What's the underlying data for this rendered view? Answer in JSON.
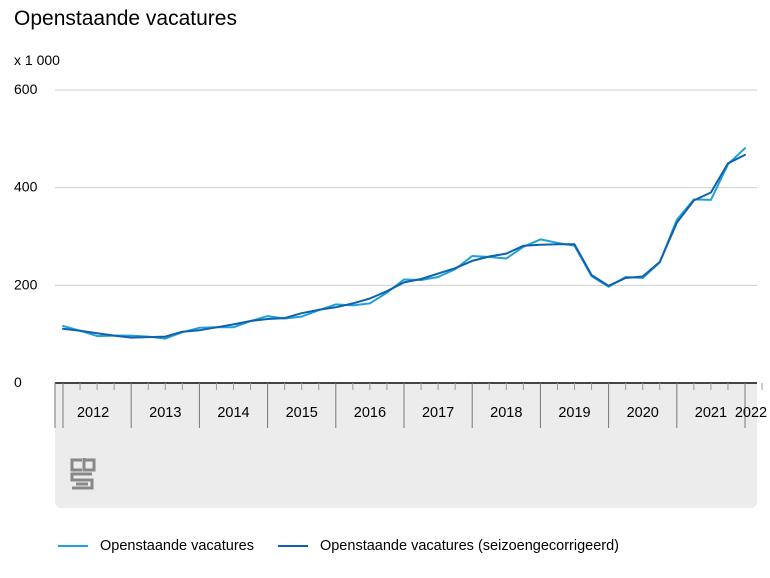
{
  "title": "Openstaande vacatures",
  "unit_label": "x 1 000",
  "chart_data": {
    "type": "line",
    "title": "Openstaande vacatures",
    "ylabel": "x 1 000",
    "ylim": [
      0,
      600
    ],
    "yticks": [
      0,
      200,
      400,
      600
    ],
    "grid": true,
    "legend_position": "bottom",
    "x_periods": [
      "2012-Q1",
      "2012-Q2",
      "2012-Q3",
      "2012-Q4",
      "2013-Q1",
      "2013-Q2",
      "2013-Q3",
      "2013-Q4",
      "2014-Q1",
      "2014-Q2",
      "2014-Q3",
      "2014-Q4",
      "2015-Q1",
      "2015-Q2",
      "2015-Q3",
      "2015-Q4",
      "2016-Q1",
      "2016-Q2",
      "2016-Q3",
      "2016-Q4",
      "2017-Q1",
      "2017-Q2",
      "2017-Q3",
      "2017-Q4",
      "2018-Q1",
      "2018-Q2",
      "2018-Q3",
      "2018-Q4",
      "2019-Q1",
      "2019-Q2",
      "2019-Q3",
      "2019-Q4",
      "2020-Q1",
      "2020-Q2",
      "2020-Q3",
      "2020-Q4",
      "2021-Q1",
      "2021-Q2",
      "2021-Q3",
      "2021-Q4",
      "2022-Q1",
      "2022-Q2"
    ],
    "year_labels": [
      "2012",
      "2013",
      "2014",
      "2015",
      "2016",
      "2017",
      "2018",
      "2019",
      "2020",
      "2021",
      "2022"
    ],
    "series": [
      {
        "name": "Openstaande vacatures",
        "color": "#1fa3d6",
        "values": [
          117,
          107,
          96,
          97,
          97,
          95,
          91,
          104,
          113,
          114,
          114,
          127,
          137,
          132,
          136,
          149,
          161,
          159,
          163,
          185,
          212,
          211,
          217,
          233,
          260,
          258,
          255,
          279,
          294,
          287,
          281,
          219,
          197,
          217,
          215,
          247,
          334,
          376,
          375,
          448,
          481,
          null
        ]
      },
      {
        "name": "Openstaande vacatures (seizoengecorrigeerd)",
        "color": "#1060b0",
        "values": [
          111,
          107,
          102,
          97,
          93,
          94,
          95,
          105,
          108,
          114,
          120,
          127,
          131,
          133,
          143,
          150,
          155,
          163,
          173,
          188,
          206,
          213,
          224,
          235,
          250,
          259,
          265,
          281,
          283,
          284,
          284,
          221,
          199,
          215,
          218,
          248,
          328,
          374,
          390,
          450,
          467,
          null
        ]
      }
    ]
  },
  "legend": [
    {
      "label": "Openstaande vacatures",
      "color": "#1fa3d6"
    },
    {
      "label": "Openstaande vacatures (seizoengecorrigeerd)",
      "color": "#1060b0"
    }
  ],
  "logo": {
    "text": "cbs",
    "color": "#888888"
  }
}
